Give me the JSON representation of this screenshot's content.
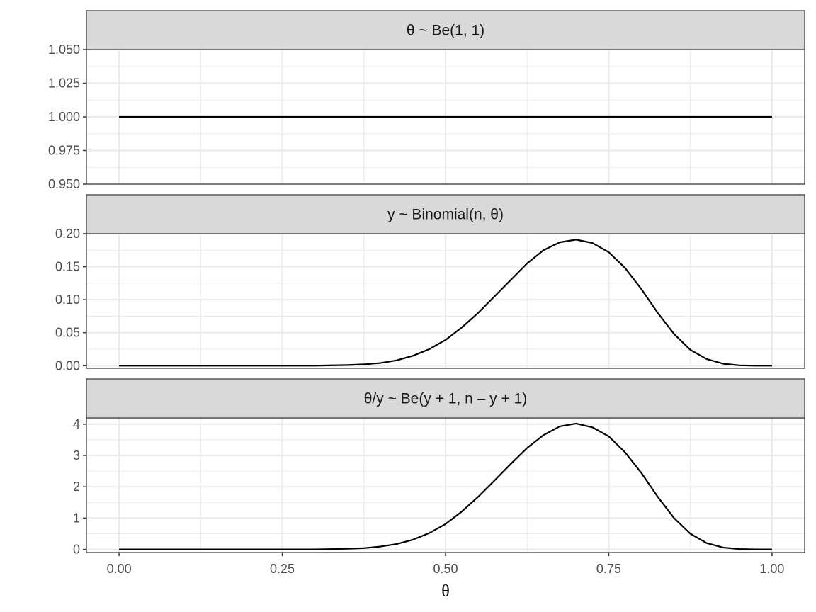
{
  "chart_data": {
    "type": "line",
    "layout": "facet-column",
    "xlabel": "θ",
    "xlim": [
      -0.05,
      1.05
    ],
    "x_ticks": [
      0,
      0.25,
      0.5,
      0.75,
      1
    ],
    "x_tick_labels": [
      "0.00",
      "0.25",
      "0.50",
      "0.75",
      "1.00"
    ],
    "grid": true,
    "line_color": "#000000",
    "strip_fill": "#d9d9d9",
    "grid_color": "#ebebeb",
    "panels": [
      {
        "title": "θ ~ Be(1, 1)",
        "ylim": [
          0.95,
          1.05
        ],
        "y_ticks": [
          0.95,
          0.975,
          1.0,
          1.025,
          1.05
        ],
        "y_tick_labels": [
          "0.950",
          "0.975",
          "1.000",
          "1.025",
          "1.050"
        ],
        "series": [
          {
            "x": [
              0,
              0.05,
              0.1,
              0.15,
              0.2,
              0.25,
              0.3,
              0.35,
              0.4,
              0.45,
              0.5,
              0.55,
              0.6,
              0.65,
              0.7,
              0.75,
              0.8,
              0.85,
              0.9,
              0.95,
              1
            ],
            "values": [
              1,
              1,
              1,
              1,
              1,
              1,
              1,
              1,
              1,
              1,
              1,
              1,
              1,
              1,
              1,
              1,
              1,
              1,
              1,
              1,
              1
            ]
          }
        ]
      },
      {
        "title": "y ~ Binomial(n, θ)",
        "ylim": [
          -0.004,
          0.2
        ],
        "y_ticks": [
          0,
          0.05,
          0.1,
          0.15,
          0.2
        ],
        "y_tick_labels": [
          "0.00",
          "0.05",
          "0.10",
          "0.15",
          "0.20"
        ],
        "series": [
          {
            "x": [
              0,
              0.1,
              0.2,
              0.25,
              0.3,
              0.35,
              0.375,
              0.4,
              0.425,
              0.45,
              0.475,
              0.5,
              0.525,
              0.55,
              0.575,
              0.6,
              0.625,
              0.65,
              0.675,
              0.7,
              0.725,
              0.75,
              0.775,
              0.8,
              0.825,
              0.85,
              0.875,
              0.9,
              0.925,
              0.95,
              0.975,
              1
            ],
            "values": [
              0,
              0,
              0,
              0,
              0,
              0.001,
              0.002,
              0.004,
              0.008,
              0.015,
              0.025,
              0.039,
              0.058,
              0.08,
              0.105,
              0.13,
              0.155,
              0.175,
              0.187,
              0.191,
              0.186,
              0.172,
              0.148,
              0.116,
              0.08,
              0.048,
              0.024,
              0.01,
              0.003,
              0.0005,
              0,
              0
            ]
          }
        ]
      },
      {
        "title": "θ/y ~ Be(y + 1, n – y + 1)",
        "ylim": [
          -0.1,
          4.2
        ],
        "y_ticks": [
          0,
          1,
          2,
          3,
          4
        ],
        "y_tick_labels": [
          "0",
          "1",
          "2",
          "3",
          "4"
        ],
        "series": [
          {
            "x": [
              0,
              0.1,
              0.2,
              0.25,
              0.3,
              0.35,
              0.375,
              0.4,
              0.425,
              0.45,
              0.475,
              0.5,
              0.525,
              0.55,
              0.575,
              0.6,
              0.625,
              0.65,
              0.675,
              0.7,
              0.725,
              0.75,
              0.775,
              0.8,
              0.825,
              0.85,
              0.875,
              0.9,
              0.925,
              0.95,
              0.975,
              1
            ],
            "values": [
              0,
              0,
              0,
              0,
              0,
              0.02,
              0.04,
              0.09,
              0.17,
              0.31,
              0.52,
              0.81,
              1.21,
              1.68,
              2.2,
              2.73,
              3.24,
              3.65,
              3.93,
              4.02,
              3.9,
              3.61,
              3.1,
              2.44,
              1.68,
              1.0,
              0.5,
              0.2,
              0.06,
              0.01,
              0,
              0
            ]
          }
        ]
      }
    ]
  }
}
